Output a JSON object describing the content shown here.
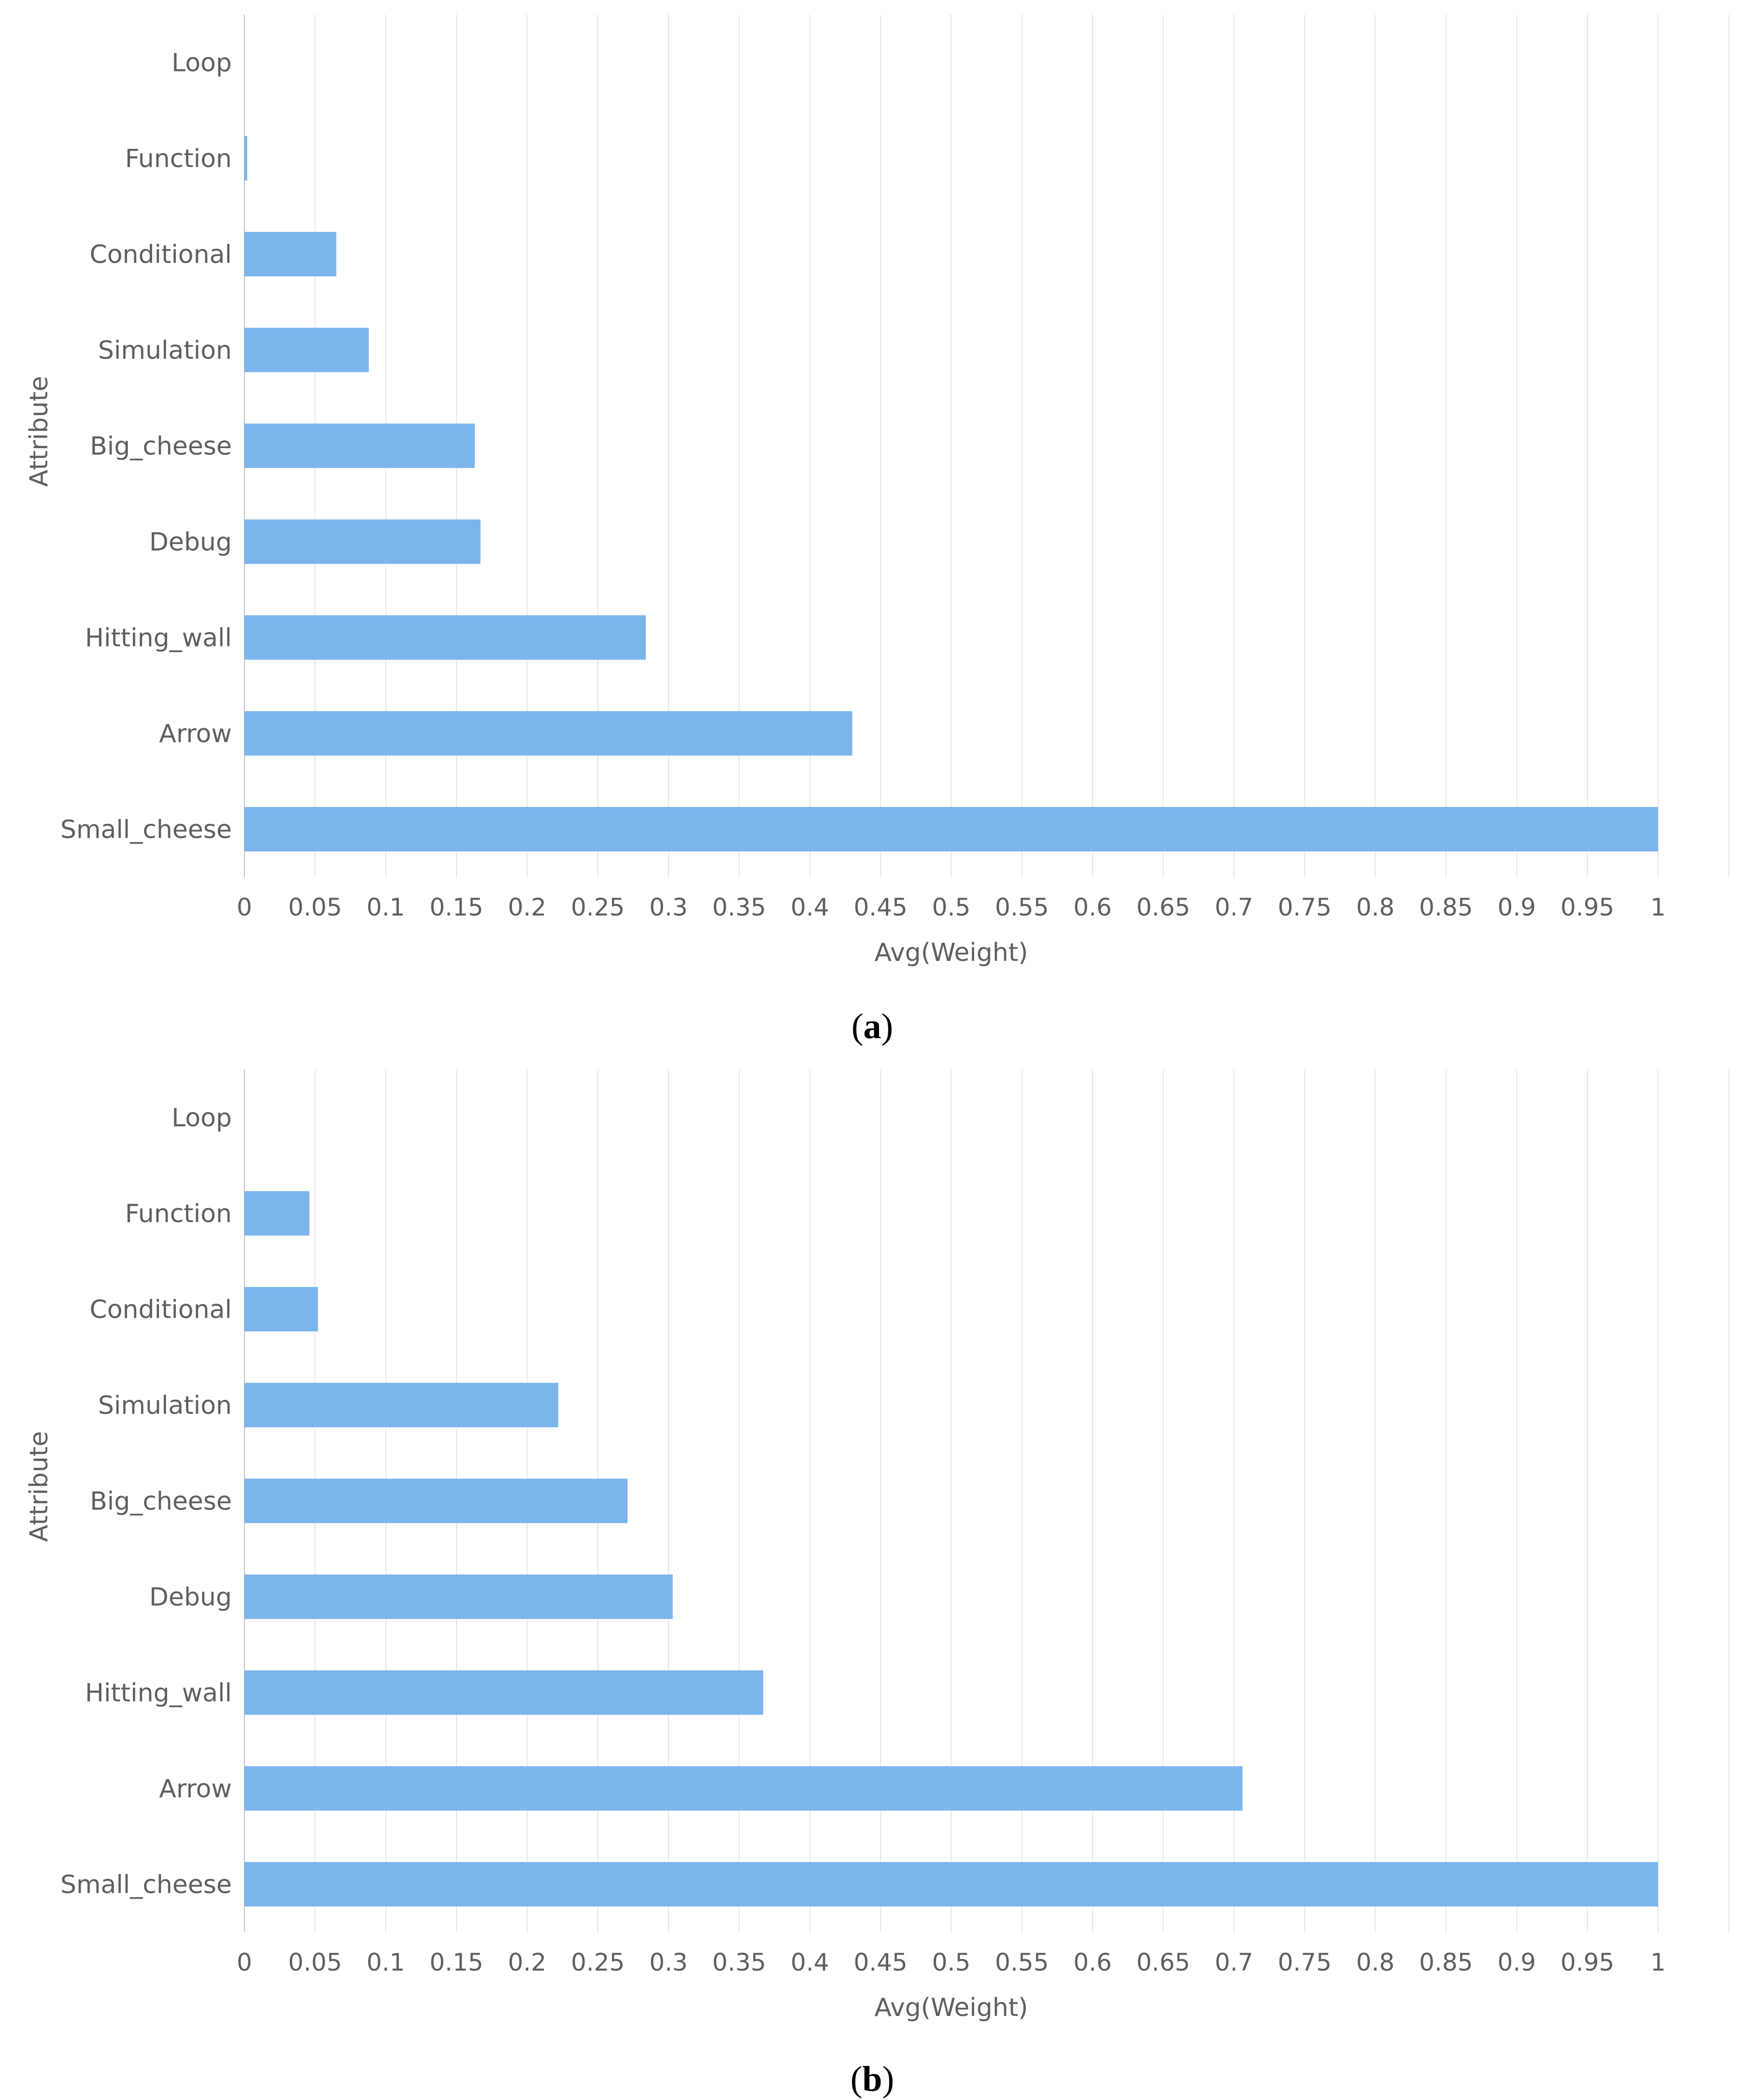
{
  "colors": {
    "bar": "#7cb5ec",
    "grid": "#e6e6e6",
    "text": "#5f5f5f"
  },
  "chart_data": [
    {
      "type": "bar",
      "orientation": "horizontal",
      "panel_label": "a",
      "categories": [
        "Loop",
        "Function",
        "Conditional",
        "Simulation",
        "Big_cheese",
        "Debug",
        "Hitting_wall",
        "Arrow",
        "Small_cheese"
      ],
      "values": [
        0,
        0.002,
        0.065,
        0.088,
        0.163,
        0.167,
        0.284,
        0.43,
        1.0
      ],
      "xlabel": "Avg(Weight)",
      "ylabel": "Attribute",
      "xlim": [
        0,
        1.05
      ],
      "x_ticks": [
        "0",
        "0.05",
        "0.1",
        "0.15",
        "0.2",
        "0.25",
        "0.3",
        "0.35",
        "0.4",
        "0.45",
        "0.5",
        "0.55",
        "0.6",
        "0.65",
        "0.7",
        "0.75",
        "0.8",
        "0.85",
        "0.9",
        "0.95",
        "1"
      ],
      "grid": true
    },
    {
      "type": "bar",
      "orientation": "horizontal",
      "panel_label": "b",
      "categories": [
        "Loop",
        "Function",
        "Conditional",
        "Simulation",
        "Big_cheese",
        "Debug",
        "Hitting_wall",
        "Arrow",
        "Small_cheese"
      ],
      "values": [
        0,
        0.046,
        0.052,
        0.222,
        0.271,
        0.303,
        0.367,
        0.706,
        1.0
      ],
      "xlabel": "Avg(Weight)",
      "ylabel": "Attribute",
      "xlim": [
        0,
        1.05
      ],
      "x_ticks": [
        "0",
        "0.05",
        "0.1",
        "0.15",
        "0.2",
        "0.25",
        "0.3",
        "0.35",
        "0.4",
        "0.45",
        "0.5",
        "0.55",
        "0.6",
        "0.65",
        "0.7",
        "0.75",
        "0.8",
        "0.85",
        "0.9",
        "0.95",
        "1"
      ],
      "grid": true
    }
  ]
}
